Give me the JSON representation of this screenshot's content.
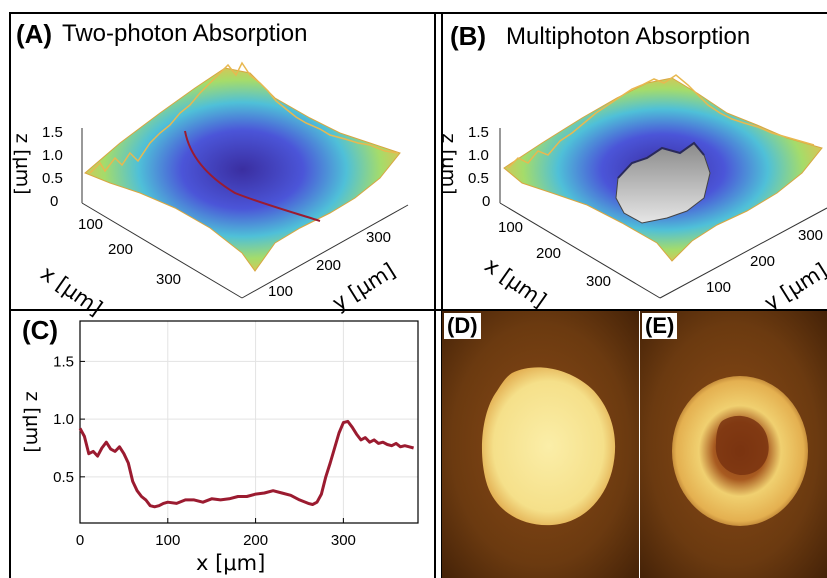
{
  "panels": {
    "a": {
      "letter": "(A)",
      "title": "Two-photon Absorption"
    },
    "b": {
      "letter": "(B)",
      "title": "Multiphoton Absorption"
    },
    "c": {
      "letter": "(C)"
    },
    "d": {
      "letter": "(D)"
    },
    "e": {
      "letter": "(E)"
    }
  },
  "surface_axes": {
    "z_label": "z [μm]",
    "x_label": "x [μm]",
    "y_label": "y [μm]",
    "z_ticks": [
      "0",
      "0.5",
      "1.0",
      "1.5"
    ],
    "x_ticks": [
      "100",
      "200",
      "300"
    ],
    "y_ticks": [
      "100",
      "200",
      "300"
    ]
  },
  "colors": {
    "profile_line": "#9b1b30",
    "surface_high": "#f2b94a",
    "surface_mid": "#4fc0d8",
    "surface_low": "#3a2ea0",
    "micrograph_bg": "#6b3a10",
    "micrograph_spot": "#f5e08a"
  },
  "chart_data": {
    "type": "line",
    "xlabel": "x [μm]",
    "ylabel": "z [μm]",
    "xlim": [
      0,
      385
    ],
    "ylim": [
      0.1,
      1.85
    ],
    "xticks": [
      0,
      100,
      200,
      300
    ],
    "yticks": [
      0.5,
      1.0,
      1.5
    ],
    "xtick_labels": [
      "0",
      "100",
      "200",
      "300"
    ],
    "ytick_labels": [
      "0.5",
      "1.0",
      "1.5"
    ],
    "grid": true,
    "x": [
      0,
      5,
      10,
      15,
      20,
      25,
      30,
      35,
      40,
      45,
      50,
      55,
      60,
      65,
      70,
      75,
      80,
      85,
      90,
      95,
      100,
      110,
      120,
      130,
      140,
      150,
      160,
      170,
      180,
      190,
      200,
      210,
      220,
      230,
      240,
      250,
      260,
      265,
      270,
      275,
      280,
      285,
      290,
      295,
      300,
      305,
      310,
      315,
      320,
      325,
      330,
      335,
      340,
      345,
      350,
      355,
      360,
      365,
      370,
      375,
      380
    ],
    "y": [
      0.92,
      0.85,
      0.7,
      0.72,
      0.68,
      0.75,
      0.8,
      0.74,
      0.72,
      0.76,
      0.7,
      0.62,
      0.46,
      0.38,
      0.33,
      0.3,
      0.25,
      0.24,
      0.25,
      0.27,
      0.28,
      0.27,
      0.3,
      0.3,
      0.28,
      0.31,
      0.3,
      0.31,
      0.33,
      0.33,
      0.35,
      0.36,
      0.38,
      0.36,
      0.34,
      0.3,
      0.27,
      0.26,
      0.28,
      0.35,
      0.5,
      0.62,
      0.75,
      0.88,
      0.97,
      0.98,
      0.93,
      0.87,
      0.82,
      0.84,
      0.8,
      0.82,
      0.79,
      0.8,
      0.78,
      0.77,
      0.79,
      0.76,
      0.77,
      0.76,
      0.75
    ]
  }
}
